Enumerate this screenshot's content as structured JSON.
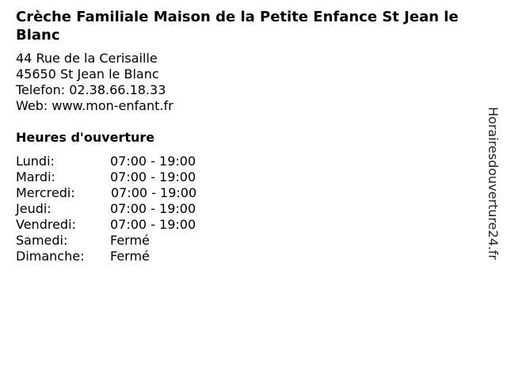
{
  "title": "Crèche Familiale Maison de la Petite Enfance St Jean le Blanc",
  "address": {
    "street": "44 Rue de la Cerisaille",
    "city": "45650 St Jean le Blanc",
    "phone": "Telefon: 02.38.66.18.33",
    "web": "Web: www.mon-enfant.fr"
  },
  "hours_heading": "Heures d'ouverture",
  "hours": [
    {
      "day": "Lundi:",
      "time": "07:00 - 19:00"
    },
    {
      "day": "Mardi:",
      "time": "07:00 - 19:00"
    },
    {
      "day": "Mercredi:",
      "time": "07:00 - 19:00"
    },
    {
      "day": "Jeudi:",
      "time": "07:00 - 19:00"
    },
    {
      "day": "Vendredi:",
      "time": "07:00 - 19:00"
    },
    {
      "day": "Samedi:",
      "time": "Fermé"
    },
    {
      "day": "Dimanche:",
      "time": "Fermé"
    }
  ],
  "side_text": "Horairesdouverture24.fr"
}
